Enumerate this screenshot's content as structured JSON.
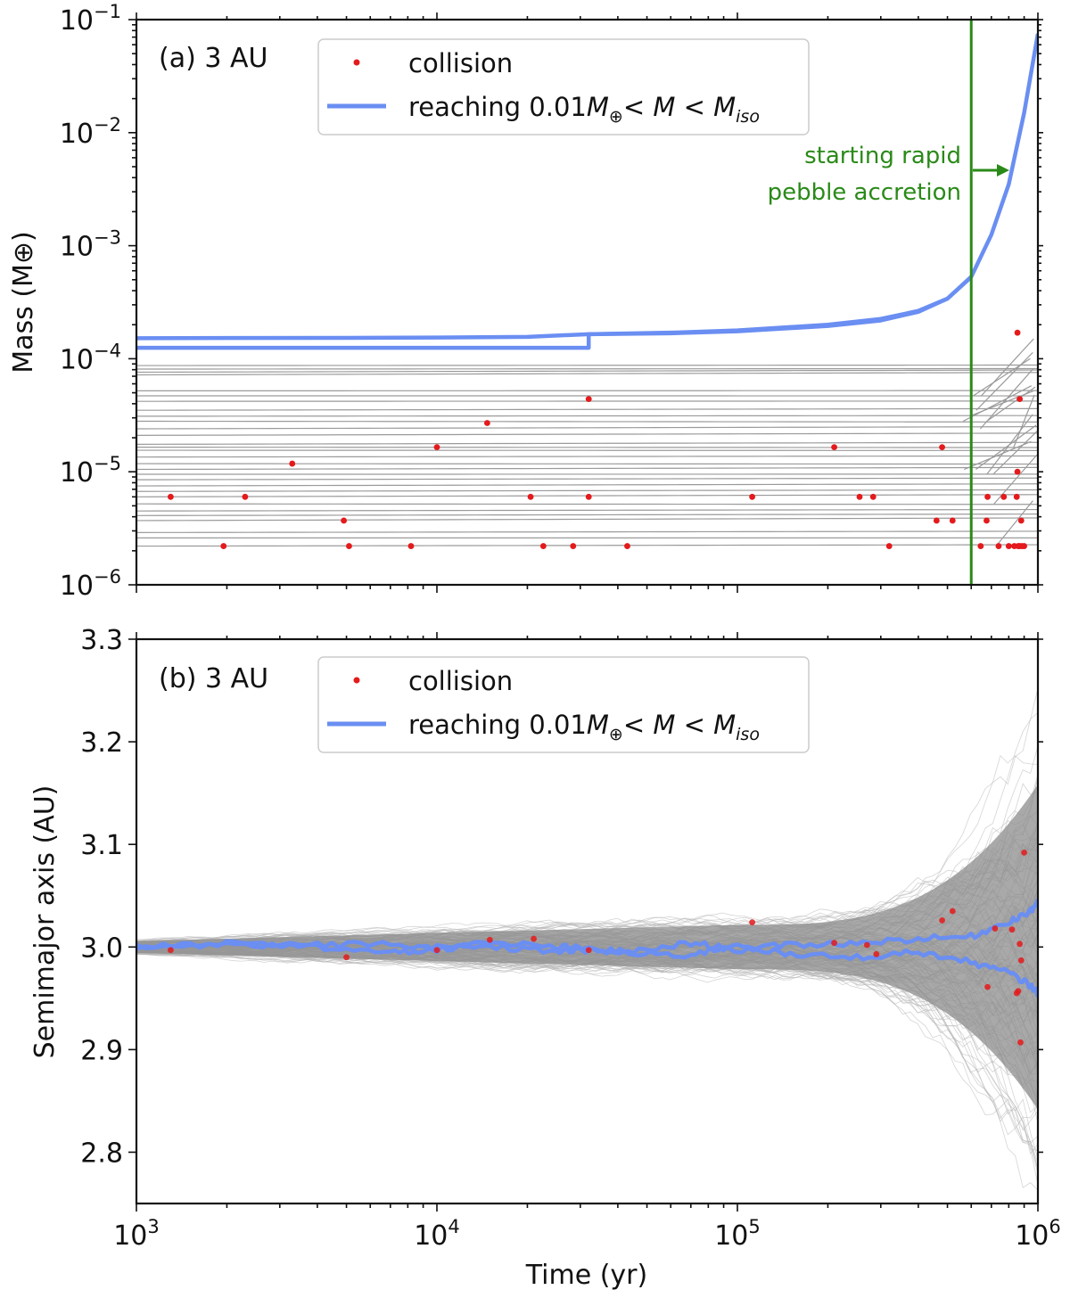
{
  "chart_data": [
    {
      "type": "line",
      "panel_label": "(a) 3 AU",
      "title": "",
      "xlabel": "",
      "ylabel": "Mass (M⊕)",
      "xscale": "log",
      "yscale": "log",
      "xlim": [
        1000,
        1000000
      ],
      "ylim": [
        1e-06,
        0.1
      ],
      "x_ticks": [
        {
          "base": "10",
          "exp": "3"
        },
        {
          "base": "10",
          "exp": "4"
        },
        {
          "base": "10",
          "exp": "5"
        },
        {
          "base": "10",
          "exp": "6"
        }
      ],
      "y_ticks": [
        {
          "base": "10",
          "exp": "−6"
        },
        {
          "base": "10",
          "exp": "−5"
        },
        {
          "base": "10",
          "exp": "−4"
        },
        {
          "base": "10",
          "exp": "−3"
        },
        {
          "base": "10",
          "exp": "−2"
        },
        {
          "base": "10",
          "exp": "−1"
        }
      ],
      "legend": {
        "placement": "top-center",
        "collision_label": "collision",
        "blue_prefix": "reaching 0.01",
        "blue_M": "M",
        "blue_sub_earth": "⊕",
        "blue_lt1": "< ",
        "blue_M2": "M",
        "blue_lt2": " < ",
        "blue_M3": "M",
        "blue_sub_iso": "iso"
      },
      "vline": {
        "x": 600000,
        "color": "#2a8a18"
      },
      "annotation": {
        "line1": "starting rapid",
        "line2": "pebble accretion",
        "color": "#2a8a18"
      },
      "blue_series": [
        {
          "name": "upper",
          "x": [
            1000,
            5000,
            10000,
            20000,
            32000,
            60000,
            100000,
            200000,
            300000,
            400000,
            500000,
            600000,
            700000,
            800000,
            900000,
            1000000
          ],
          "y": [
            0.000152,
            0.000153,
            0.000154,
            0.000156,
            0.000165,
            0.00017,
            0.000178,
            0.0002,
            0.000225,
            0.000265,
            0.00034,
            0.00053,
            0.00125,
            0.0035,
            0.015,
            0.075
          ]
        },
        {
          "name": "lower",
          "x": [
            1000,
            32000,
            32000,
            60000,
            100000,
            200000,
            300000,
            400000,
            500000,
            600000
          ],
          "y": [
            0.000125,
            0.000125,
            0.000165,
            0.000168,
            0.000175,
            0.000195,
            0.000218,
            0.00026,
            0.00034,
            0.00053
          ]
        }
      ],
      "gray_levels": [
        2.2e-06,
        2.6e-06,
        2.9e-06,
        3.7e-06,
        4.1e-06,
        4.5e-06,
        5.2e-06,
        6e-06,
        6.7e-06,
        7.5e-06,
        8.5e-06,
        9.5e-06,
        1.05e-05,
        1.18e-05,
        1.35e-05,
        1.55e-05,
        1.65e-05,
        1.75e-05,
        2.1e-05,
        2.4e-05,
        2.8e-05,
        3.1e-05,
        3.5e-05,
        4.2e-05,
        4.7e-05,
        5.2e-05,
        7.2e-05,
        7.6e-05,
        8.1e-05,
        8.7e-05
      ],
      "collisions": [
        {
          "x": 1300,
          "y": 6e-06
        },
        {
          "x": 1950,
          "y": 2.2e-06
        },
        {
          "x": 2300,
          "y": 6e-06
        },
        {
          "x": 3300,
          "y": 1.18e-05
        },
        {
          "x": 4900,
          "y": 3.7e-06
        },
        {
          "x": 5100,
          "y": 2.2e-06
        },
        {
          "x": 8200,
          "y": 2.2e-06
        },
        {
          "x": 10000,
          "y": 1.65e-05
        },
        {
          "x": 14700,
          "y": 2.7e-05
        },
        {
          "x": 20500,
          "y": 6e-06
        },
        {
          "x": 22600,
          "y": 2.2e-06
        },
        {
          "x": 28400,
          "y": 2.2e-06
        },
        {
          "x": 32000,
          "y": 4.4e-05
        },
        {
          "x": 32000,
          "y": 6e-06
        },
        {
          "x": 43000,
          "y": 2.2e-06
        },
        {
          "x": 112000,
          "y": 6e-06
        },
        {
          "x": 210000,
          "y": 1.65e-05
        },
        {
          "x": 255000,
          "y": 6e-06
        },
        {
          "x": 283000,
          "y": 6e-06
        },
        {
          "x": 320000,
          "y": 2.2e-06
        },
        {
          "x": 480000,
          "y": 1.65e-05
        },
        {
          "x": 460000,
          "y": 3.7e-06
        },
        {
          "x": 520000,
          "y": 3.7e-06
        },
        {
          "x": 645000,
          "y": 2.2e-06
        },
        {
          "x": 680000,
          "y": 6e-06
        },
        {
          "x": 675000,
          "y": 3.7e-06
        },
        {
          "x": 740000,
          "y": 2.2e-06
        },
        {
          "x": 770000,
          "y": 6e-06
        },
        {
          "x": 800000,
          "y": 2.2e-06
        },
        {
          "x": 835000,
          "y": 2.2e-06
        },
        {
          "x": 850000,
          "y": 6e-06
        },
        {
          "x": 855000,
          "y": 1e-05
        },
        {
          "x": 860000,
          "y": 2.2e-06
        },
        {
          "x": 870000,
          "y": 2.2e-06
        },
        {
          "x": 880000,
          "y": 3.7e-06
        },
        {
          "x": 885000,
          "y": 2.2e-06
        },
        {
          "x": 900000,
          "y": 2.2e-06
        },
        {
          "x": 870000,
          "y": 4.4e-05
        },
        {
          "x": 855000,
          "y": 0.00017
        }
      ]
    },
    {
      "type": "line",
      "panel_label": "(b) 3 AU",
      "title": "",
      "xlabel": "Time (yr)",
      "ylabel": "Semimajor axis (AU)",
      "xscale": "log",
      "yscale": "linear",
      "xlim": [
        1000,
        1000000
      ],
      "ylim": [
        2.75,
        3.3
      ],
      "x_ticks": [
        {
          "base": "10",
          "exp": "3"
        },
        {
          "base": "10",
          "exp": "4"
        },
        {
          "base": "10",
          "exp": "5"
        },
        {
          "base": "10",
          "exp": "6"
        }
      ],
      "y_ticks": [
        "2.8",
        "2.9",
        "3.0",
        "3.1",
        "3.2",
        "3.3"
      ],
      "legend": {
        "placement": "top-center",
        "collision_label": "collision",
        "blue_prefix": "reaching 0.01",
        "blue_M": "M",
        "blue_sub_earth": "⊕",
        "blue_lt1": "< ",
        "blue_M2": "M",
        "blue_lt2": " < ",
        "blue_M3": "M",
        "blue_sub_iso": "iso"
      },
      "gray_envelope": {
        "center": 3.0,
        "half_width_start": 0.008,
        "half_width_1e5": 0.03,
        "half_width_end": 0.22
      },
      "blue_series": [
        {
          "name": "track-1",
          "x": [
            1000,
            2000,
            4000,
            7000,
            10000,
            15000,
            25000,
            32000,
            45000,
            70000,
            100000,
            150000,
            250000,
            400000,
            600000,
            800000,
            950000,
            1000000
          ],
          "y": [
            3.0,
            3.004,
            3.002,
            3.003,
            2.998,
            3.004,
            3.0,
            2.998,
            2.995,
            3.004,
            2.997,
            3.002,
            3.004,
            3.008,
            3.01,
            3.025,
            3.035,
            3.045
          ]
        },
        {
          "name": "track-2",
          "x": [
            1000,
            2000,
            4000,
            7000,
            10000,
            15000,
            25000,
            32000,
            45000,
            70000,
            100000,
            150000,
            250000,
            400000,
            600000,
            800000,
            950000,
            1000000
          ],
          "y": [
            3.0,
            3.002,
            3.0,
            2.994,
            2.999,
            3.0,
            2.996,
            2.997,
            2.993,
            2.992,
            3.003,
            2.992,
            2.99,
            2.995,
            2.985,
            2.975,
            2.962,
            2.955
          ]
        }
      ],
      "collisions": [
        {
          "x": 1300,
          "y": 2.997
        },
        {
          "x": 5000,
          "y": 2.99
        },
        {
          "x": 10000,
          "y": 2.997
        },
        {
          "x": 15000,
          "y": 3.007
        },
        {
          "x": 21000,
          "y": 3.008
        },
        {
          "x": 32000,
          "y": 2.997
        },
        {
          "x": 112000,
          "y": 3.024
        },
        {
          "x": 210000,
          "y": 3.004
        },
        {
          "x": 270000,
          "y": 3.002
        },
        {
          "x": 290000,
          "y": 2.993
        },
        {
          "x": 480000,
          "y": 3.026
        },
        {
          "x": 520000,
          "y": 3.035
        },
        {
          "x": 680000,
          "y": 2.961
        },
        {
          "x": 720000,
          "y": 3.018
        },
        {
          "x": 820000,
          "y": 3.017
        },
        {
          "x": 850000,
          "y": 2.955
        },
        {
          "x": 860000,
          "y": 2.957
        },
        {
          "x": 870000,
          "y": 3.003
        },
        {
          "x": 875000,
          "y": 2.907
        },
        {
          "x": 900000,
          "y": 3.092
        },
        {
          "x": 880000,
          "y": 2.987
        }
      ]
    }
  ]
}
